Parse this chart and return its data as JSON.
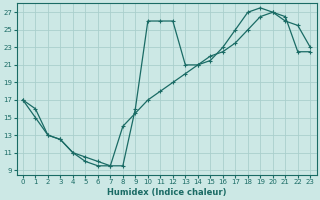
{
  "xlabel": "Humidex (Indice chaleur)",
  "background_color": "#cce8e5",
  "grid_color": "#aacfcc",
  "line_color": "#1a6b65",
  "xlim": [
    -0.5,
    23.5
  ],
  "ylim": [
    8.5,
    28
  ],
  "xticks": [
    0,
    1,
    2,
    3,
    4,
    5,
    6,
    7,
    8,
    9,
    10,
    11,
    12,
    13,
    14,
    15,
    16,
    17,
    18,
    19,
    20,
    21,
    22,
    23
  ],
  "yticks": [
    9,
    11,
    13,
    15,
    17,
    19,
    21,
    23,
    25,
    27
  ],
  "line1_x": [
    0,
    1,
    2,
    3,
    4,
    5,
    6,
    7,
    8,
    9,
    10,
    11,
    12,
    13,
    14,
    15,
    16,
    17,
    18,
    19,
    20,
    21,
    22,
    23
  ],
  "line1_y": [
    17,
    16,
    13,
    12.5,
    11,
    10.5,
    10,
    9.5,
    9.5,
    16,
    26,
    26,
    26,
    21,
    21,
    21.5,
    23,
    25,
    27,
    27.5,
    27,
    26,
    25.5,
    23
  ],
  "line2_x": [
    0,
    1,
    2,
    3,
    4,
    5,
    6,
    7,
    8,
    9,
    10,
    11,
    12,
    13,
    14,
    15,
    16,
    17,
    18,
    19,
    20,
    21,
    22,
    23
  ],
  "line2_y": [
    17,
    15,
    13,
    12.5,
    11,
    10,
    9.5,
    9.5,
    14,
    15.5,
    17,
    18,
    19,
    20,
    21,
    22,
    22.5,
    23.5,
    25,
    26.5,
    27,
    26.5,
    22.5,
    22.5
  ]
}
